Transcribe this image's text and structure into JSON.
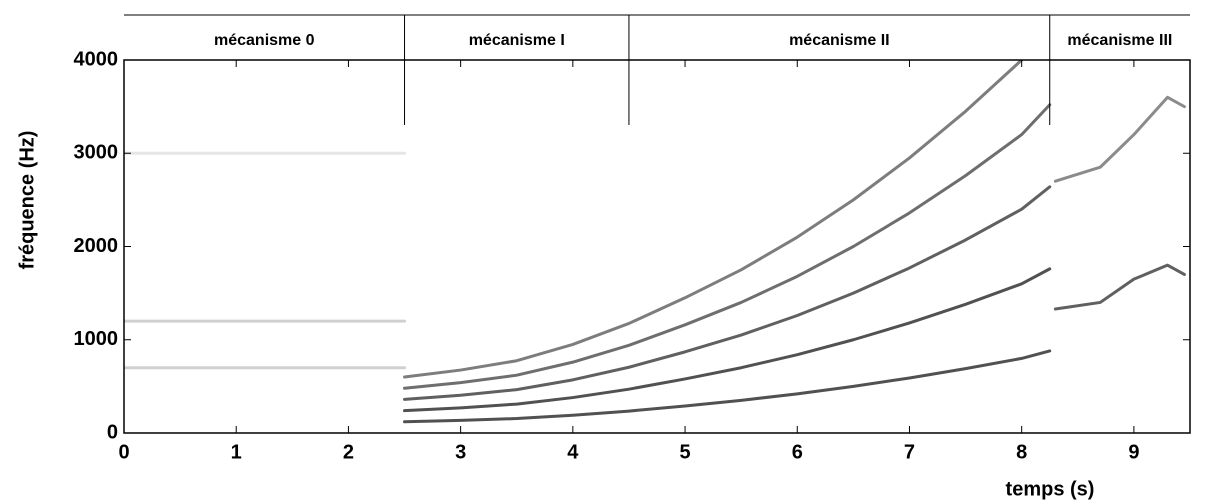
{
  "chart_data": {
    "type": "spectrogram",
    "y_label": "fréquence  (Hz)",
    "x_label": "temps   (s)",
    "xlim": [
      0,
      9.5
    ],
    "ylim": [
      0,
      4000
    ],
    "xticks": [
      0,
      1,
      2,
      3,
      4,
      5,
      6,
      7,
      8,
      9
    ],
    "yticks": [
      0,
      1000,
      2000,
      3000,
      4000
    ],
    "regions": [
      {
        "label": "mécanisme 0",
        "start": 0,
        "end": 2.5
      },
      {
        "label": "mécanisme I",
        "start": 2.5,
        "end": 4.5
      },
      {
        "label": "mécanisme II",
        "start": 4.5,
        "end": 8.25
      },
      {
        "label": "mécanisme III",
        "start": 8.25,
        "end": 9.5
      }
    ],
    "series": [
      {
        "color": "#c8c8c8",
        "x": [
          0,
          2.5
        ],
        "values": [
          700,
          700
        ]
      },
      {
        "color": "#c8c8c8",
        "x": [
          0,
          2.5
        ],
        "values": [
          1200,
          1200
        ]
      },
      {
        "color": "#e2e2e2",
        "x": [
          0,
          2.5
        ],
        "values": [
          3000,
          3000
        ]
      },
      {
        "color": "#333333",
        "x": [
          2.5,
          3,
          3.5,
          4,
          4.5,
          5,
          5.5,
          6,
          6.5,
          7,
          7.5,
          8,
          8.25
        ],
        "values": [
          120,
          135,
          155,
          190,
          235,
          290,
          350,
          420,
          500,
          590,
          690,
          800,
          880
        ]
      },
      {
        "color": "#333333",
        "x": [
          2.5,
          3,
          3.5,
          4,
          4.5,
          5,
          5.5,
          6,
          6.5,
          7,
          7.5,
          8,
          8.25
        ],
        "values": [
          240,
          270,
          310,
          380,
          470,
          580,
          700,
          840,
          1000,
          1180,
          1380,
          1600,
          1760
        ]
      },
      {
        "color": "#444444",
        "x": [
          2.5,
          3,
          3.5,
          4,
          4.5,
          5,
          5.5,
          6,
          6.5,
          7,
          7.5,
          8,
          8.25
        ],
        "values": [
          360,
          405,
          465,
          570,
          705,
          870,
          1050,
          1260,
          1500,
          1770,
          2070,
          2400,
          2640
        ]
      },
      {
        "color": "#555555",
        "x": [
          2.5,
          3,
          3.5,
          4,
          4.5,
          5,
          5.5,
          6,
          6.5,
          7,
          7.5,
          8,
          8.25
        ],
        "values": [
          480,
          540,
          620,
          760,
          940,
          1160,
          1400,
          1680,
          2000,
          2360,
          2760,
          3200,
          3520
        ]
      },
      {
        "color": "#666666",
        "x": [
          2.5,
          3,
          3.5,
          4,
          4.5,
          5,
          5.5,
          6,
          6.5,
          7,
          7.5,
          8,
          8.25
        ],
        "values": [
          600,
          675,
          775,
          950,
          1175,
          1450,
          1750,
          2100,
          2500,
          2950,
          3450,
          4000,
          null
        ]
      },
      {
        "color": "#444444",
        "x": [
          8.3,
          8.7,
          9.0,
          9.3,
          9.45
        ],
        "values": [
          1330,
          1400,
          1650,
          1800,
          1700
        ]
      },
      {
        "color": "#777777",
        "x": [
          8.3,
          8.7,
          9.0,
          9.3,
          9.45
        ],
        "values": [
          2700,
          2850,
          3200,
          3600,
          3500
        ]
      }
    ]
  }
}
